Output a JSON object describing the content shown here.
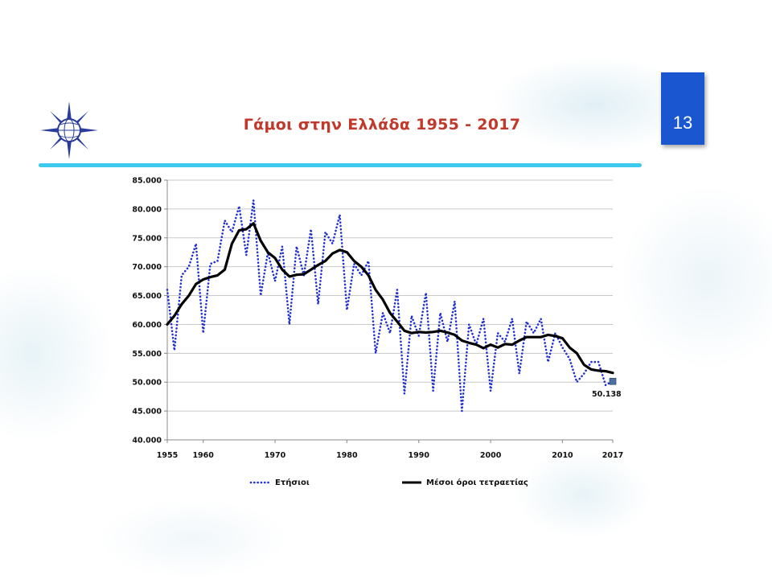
{
  "slide": {
    "title": "Γάμοι στην Ελλάδα 1955 - 2017",
    "page_number": "13",
    "colors": {
      "title": "#c0392b",
      "badge": "#1a56d0",
      "divider": "#3ec9ee"
    },
    "logo_icon": "compass-star-globe-icon"
  },
  "chart_data": {
    "type": "line",
    "x": [
      1955,
      1956,
      1957,
      1958,
      1959,
      1960,
      1961,
      1962,
      1963,
      1964,
      1965,
      1966,
      1967,
      1968,
      1969,
      1970,
      1971,
      1972,
      1973,
      1974,
      1975,
      1976,
      1977,
      1978,
      1979,
      1980,
      1981,
      1982,
      1983,
      1984,
      1985,
      1986,
      1987,
      1988,
      1989,
      1990,
      1991,
      1992,
      1993,
      1994,
      1995,
      1996,
      1997,
      1998,
      1999,
      2000,
      2001,
      2002,
      2003,
      2004,
      2005,
      2006,
      2007,
      2008,
      2009,
      2010,
      2011,
      2012,
      2013,
      2014,
      2015,
      2016,
      2017
    ],
    "series": [
      {
        "name": "Ετήσιοι",
        "style": "dotted",
        "color": "#1f2fd1",
        "values": [
          66000,
          55500,
          68500,
          70000,
          74000,
          58500,
          70500,
          71000,
          78000,
          76000,
          80500,
          72000,
          81500,
          65000,
          72500,
          67500,
          73500,
          60000,
          73500,
          68500,
          76500,
          63500,
          76000,
          74000,
          79000,
          62500,
          70500,
          68500,
          71000,
          55000,
          62000,
          58500,
          66000,
          48000,
          61500,
          58000,
          65500,
          48500,
          62000,
          57000,
          64000,
          45000,
          60000,
          56500,
          61000,
          48500,
          58500,
          57000,
          61000,
          51500,
          60500,
          58500,
          61000,
          53500,
          58500,
          56000,
          54000,
          50000,
          51500,
          53500,
          53500,
          49500,
          50138
        ]
      },
      {
        "name": "Μέσοι όροι τετραετίας",
        "style": "solid",
        "color": "#000000",
        "values": [
          60000,
          61500,
          63500,
          65000,
          67000,
          67800,
          68200,
          68500,
          69500,
          74000,
          76300,
          76500,
          77500,
          74500,
          72500,
          71500,
          69500,
          68300,
          68600,
          68700,
          69500,
          70300,
          71000,
          72300,
          72900,
          72500,
          71000,
          70000,
          68500,
          66000,
          64300,
          62000,
          60500,
          58900,
          58500,
          58700,
          58600,
          58700,
          58900,
          58600,
          58200,
          57200,
          56800,
          56500,
          55900,
          56500,
          56000,
          56600,
          56500,
          57200,
          57800,
          57800,
          57800,
          58200,
          58000,
          57600,
          56000,
          55000,
          53000,
          52200,
          52000,
          51900,
          51600
        ]
      }
    ],
    "point_label": {
      "x": 2017,
      "y": 50138,
      "text": "50.138"
    },
    "title": "",
    "xlabel": "",
    "ylabel": "",
    "xlim": [
      1955,
      2017
    ],
    "ylim": [
      40000,
      85000
    ],
    "xticks": [
      1955,
      1960,
      1970,
      1980,
      1990,
      2000,
      2010,
      2017
    ],
    "xtick_labels": [
      "1955",
      "1960",
      "1970",
      "1980",
      "1990",
      "2000",
      "2010",
      "2017"
    ],
    "yticks": [
      40000,
      45000,
      50000,
      55000,
      60000,
      65000,
      70000,
      75000,
      80000,
      85000
    ],
    "ytick_labels": [
      "40.000",
      "45.000",
      "50.000",
      "55.000",
      "60.000",
      "65.000",
      "70.000",
      "75.000",
      "80.000",
      "85.000"
    ],
    "grid": true,
    "legend_position": "bottom"
  }
}
